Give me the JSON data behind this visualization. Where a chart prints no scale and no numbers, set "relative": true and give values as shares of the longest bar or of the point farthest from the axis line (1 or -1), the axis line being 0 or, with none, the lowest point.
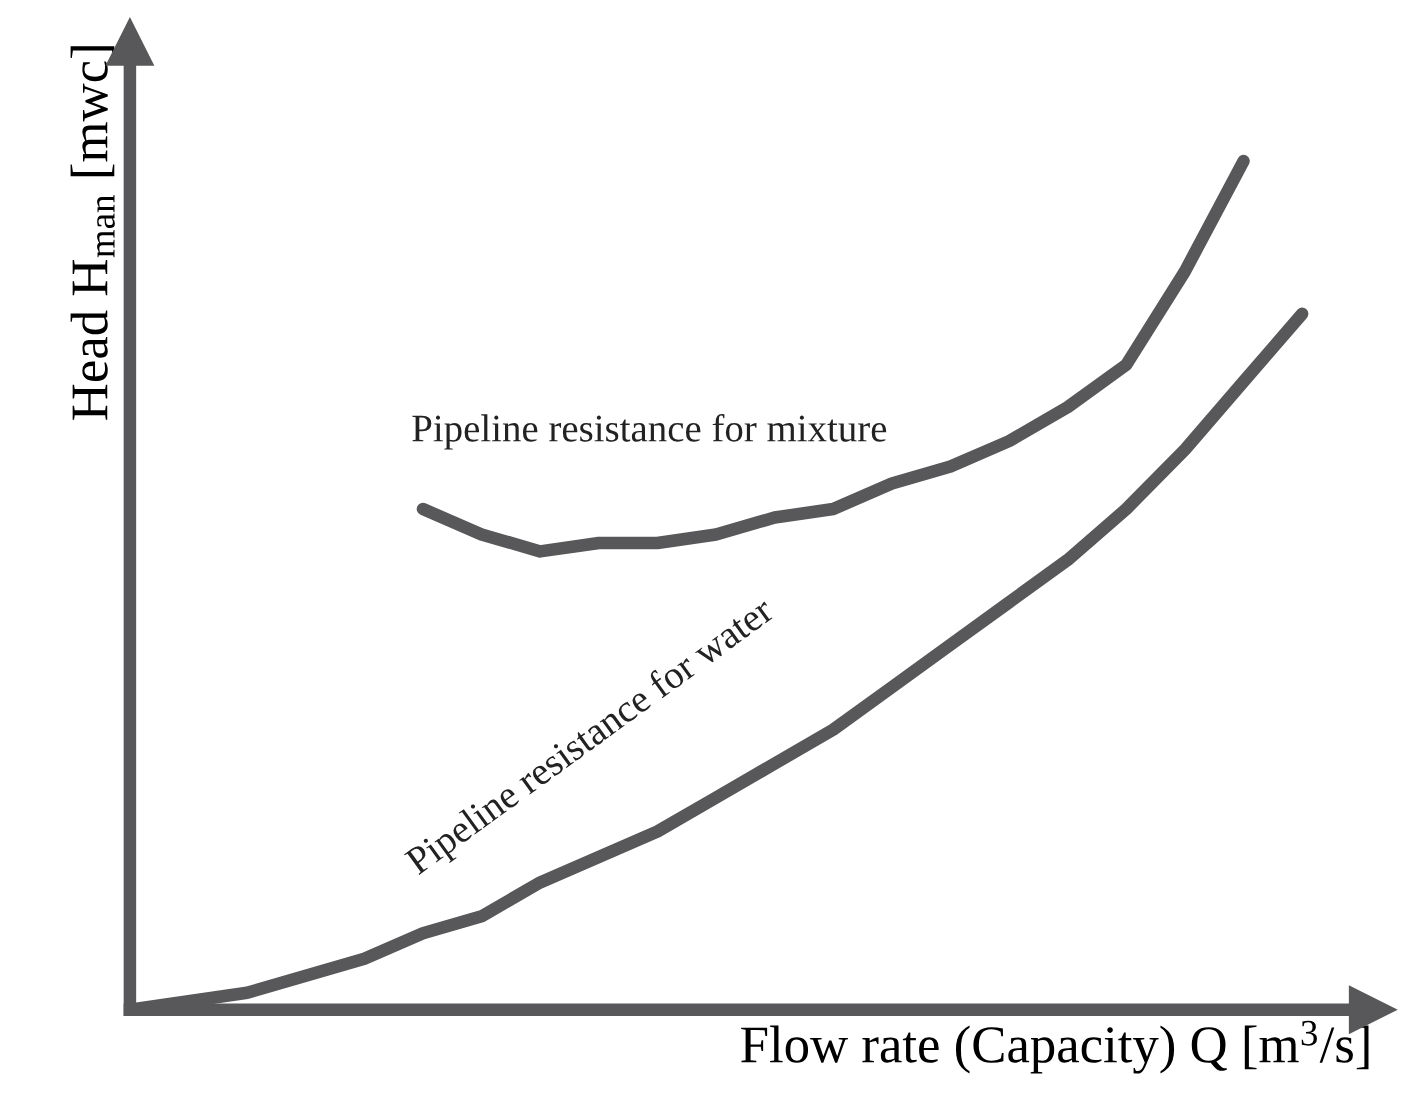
{
  "chart_data": {
    "type": "line",
    "relative": true,
    "xlabel": "Flow rate (Capacity) Q [m$^{3}$/s]",
    "ylabel": "Head H$_{man}$ [mwc]",
    "marker": "none",
    "line_style": "solid",
    "categories": [
      null,
      null,
      null,
      null,
      null,
      null,
      null,
      null,
      null,
      null,
      null,
      null,
      null,
      null,
      null,
      null,
      null,
      null,
      null,
      null,
      null
    ],
    "series": [
      {
        "name": "Pipeline resistance for mixture",
        "color": "#58585a",
        "values": [
          null,
          null,
          null,
          null,
          null,
          0.59,
          0.56,
          0.54,
          0.55,
          0.55,
          0.56,
          0.58,
          0.59,
          0.62,
          0.64,
          0.67,
          0.71,
          0.76,
          0.87,
          1.0,
          null
        ]
      },
      {
        "name": "Pipeline resistance for water",
        "color": "#58585a",
        "values": [
          0,
          0.01,
          0.02,
          0.04,
          0.06,
          0.09,
          0.11,
          0.15,
          0.18,
          0.21,
          0.25,
          0.29,
          0.33,
          0.38,
          0.43,
          0.48,
          0.53,
          0.59,
          0.66,
          0.74,
          0.82
        ]
      }
    ]
  }
}
